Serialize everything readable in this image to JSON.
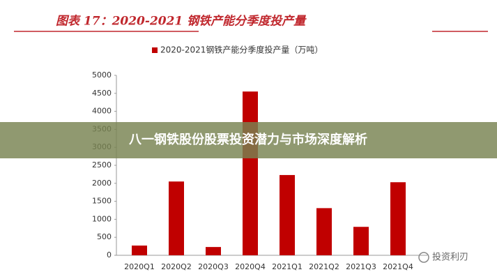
{
  "chart_data": {
    "type": "bar",
    "title": "图表 17：2020-2021 钢铁产能分季度投产量",
    "categories": [
      "2020Q1",
      "2020Q2",
      "2020Q3",
      "2020Q4",
      "2021Q1",
      "2021Q2",
      "2021Q3",
      "2021Q4"
    ],
    "series": [
      {
        "name": "2020-2021钢铁产能分季度投产量（万吨）",
        "color": "#c00000",
        "values": [
          270,
          2050,
          230,
          4550,
          2230,
          1310,
          790,
          2030
        ]
      }
    ],
    "ylim": [
      0,
      5000
    ],
    "yticks": [
      0,
      500,
      1000,
      1500,
      2000,
      2500,
      3000,
      3500,
      4000,
      4500,
      5000
    ],
    "grid": false,
    "annotations": [
      "八一钢铁股份股票投资潜力与市场深度解析",
      "投资利刃"
    ]
  }
}
